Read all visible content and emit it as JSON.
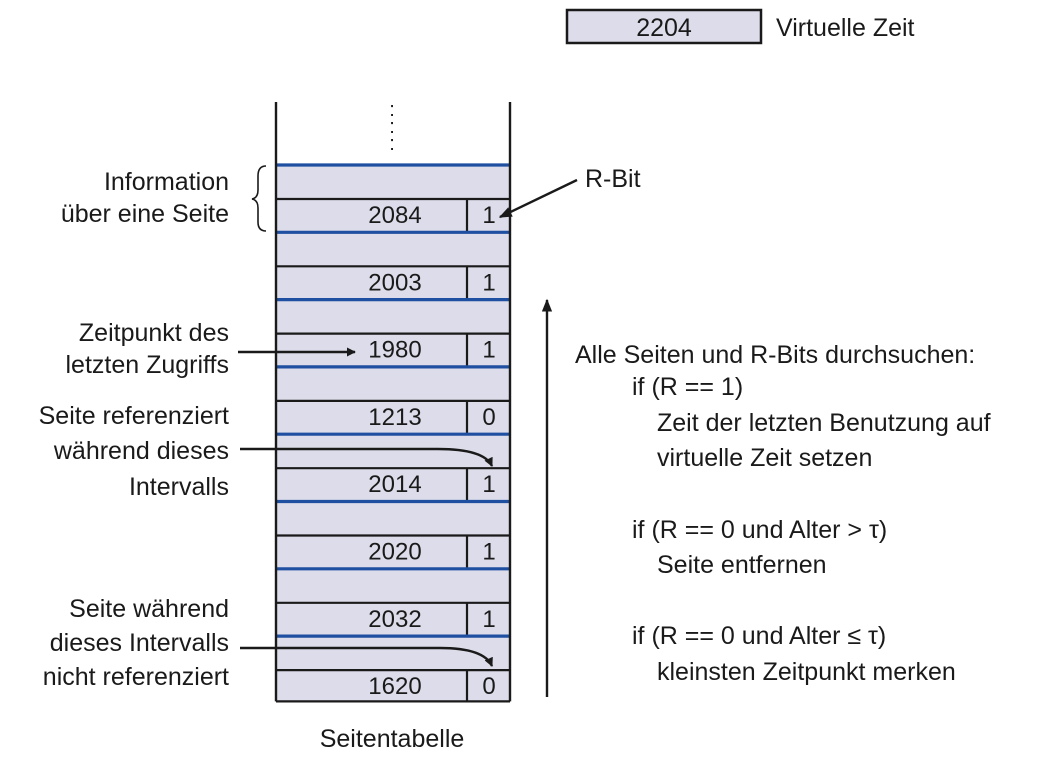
{
  "virtual_time": {
    "value": "2204",
    "label": "Virtuelle Zeit"
  },
  "table": {
    "caption": "Seitentabelle",
    "ellipsis": ":",
    "rows": [
      {
        "time": "2084",
        "rbit": "1"
      },
      {
        "time": "2003",
        "rbit": "1"
      },
      {
        "time": "1980",
        "rbit": "1"
      },
      {
        "time": "1213",
        "rbit": "0"
      },
      {
        "time": "2014",
        "rbit": "1"
      },
      {
        "time": "2020",
        "rbit": "1"
      },
      {
        "time": "2032",
        "rbit": "1"
      },
      {
        "time": "1620",
        "rbit": "0"
      }
    ]
  },
  "labels": {
    "info": [
      "Information",
      "über eine Seite"
    ],
    "rbit": "R-Bit",
    "last_access": [
      "Zeitpunkt des",
      "letzten Zugriffs"
    ],
    "referenced": [
      "Seite referenziert",
      "während dieses",
      "Intervalls"
    ],
    "not_referenced": [
      "Seite während",
      "dieses Intervalls",
      "nicht referenziert"
    ]
  },
  "algorithm": [
    "Alle Seiten und R-Bits durchsuchen:",
    "if (R == 1)",
    "Zeit der letzten Benutzung auf",
    "virtuelle Zeit setzen",
    "if (R == 0 und Alter > τ)",
    "Seite entfernen",
    "if (R == 0 und Alter ≤ τ)",
    "kleinsten Zeitpunkt merken"
  ],
  "colors": {
    "cell_fill": "#dcdcea",
    "blue_line": "#1f4fa0",
    "ink": "#1a1a1a"
  }
}
